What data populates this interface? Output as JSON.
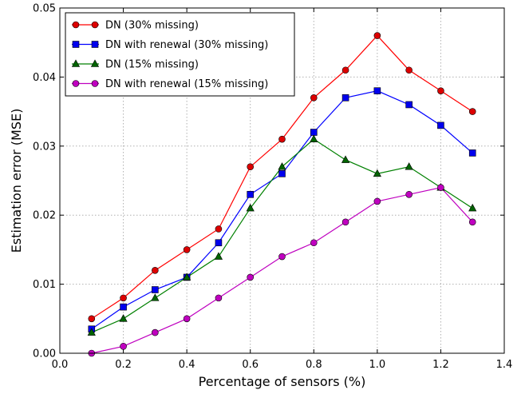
{
  "chart_data": {
    "type": "line",
    "xlabel": "Percentage of sensors (%)",
    "ylabel": "Estimation error (MSE)",
    "xlim": [
      0.0,
      1.4
    ],
    "ylim": [
      0.0,
      0.05
    ],
    "xticks": [
      "0.0",
      "0.2",
      "0.4",
      "0.6",
      "0.8",
      "1.0",
      "1.2",
      "1.4"
    ],
    "yticks": [
      "0.00",
      "0.01",
      "0.02",
      "0.03",
      "0.04",
      "0.05"
    ],
    "grid": true,
    "legend_position": "top-left",
    "x": [
      0.1,
      0.2,
      0.3,
      0.4,
      0.5,
      0.6,
      0.7,
      0.8,
      0.9,
      1.0,
      1.1,
      1.2,
      1.3
    ],
    "series": [
      {
        "name": "DN (30% missing)",
        "color": "#ff0000",
        "marker_fill": "#dd0000",
        "marker": "circle",
        "values": [
          0.005,
          0.008,
          0.012,
          0.015,
          0.018,
          0.027,
          0.031,
          0.037,
          0.041,
          0.046,
          0.041,
          0.038,
          0.035
        ]
      },
      {
        "name": "DN with renewal (30% missing)",
        "color": "#0000ff",
        "marker_fill": "#0000ee",
        "marker": "square",
        "values": [
          0.0035,
          0.0067,
          0.0092,
          0.011,
          0.016,
          0.023,
          0.026,
          0.032,
          0.037,
          0.038,
          0.036,
          0.033,
          0.029
        ]
      },
      {
        "name": "DN (15% missing)",
        "color": "#008000",
        "marker_fill": "#006400",
        "marker": "triangle",
        "values": [
          0.003,
          0.005,
          0.008,
          0.011,
          0.014,
          0.021,
          0.027,
          0.031,
          0.028,
          0.026,
          0.027,
          0.024,
          0.021
        ]
      },
      {
        "name": "DN with renewal (15% missing)",
        "color": "#bf00bf",
        "marker_fill": "#c000c0",
        "marker": "circle",
        "values": [
          0.0,
          0.001,
          0.003,
          0.005,
          0.008,
          0.011,
          0.014,
          0.016,
          0.019,
          0.022,
          0.023,
          0.024,
          0.019
        ]
      }
    ]
  }
}
